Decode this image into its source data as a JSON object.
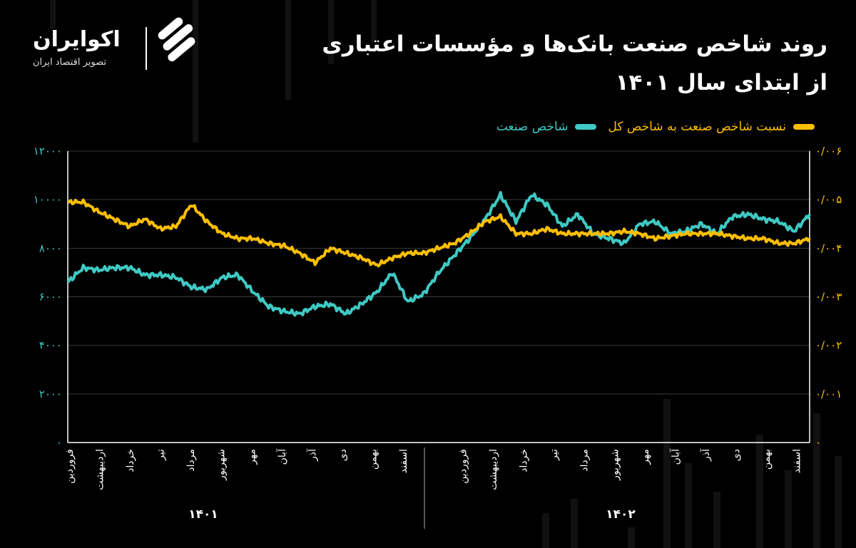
{
  "title_line1": "روند شاخص صنعت بانک‌ها و مؤسسات اعتباری",
  "title_line2": "از ابتدای سال ۱۴۰۱",
  "logo": {
    "name": "اکوایران",
    "subtitle": "تصویر اقتصاد ایران",
    "mark": "logo-mark-icon"
  },
  "colors": {
    "industry_index": "#3fc9c3",
    "ratio": "#ffbf00",
    "axis": "#ffffff",
    "grid": "#3a3a3a"
  },
  "chart_data": {
    "type": "line",
    "legend": [
      {
        "key": "ratio",
        "label": "نسبت شاخص صنعت به شاخص کل"
      },
      {
        "key": "industry_index",
        "label": "شاخص صنعت"
      }
    ],
    "legend_position": "top-right",
    "grid": "horizontal",
    "y_left": {
      "ticks": [
        "۱۲۰۰۰",
        "۱۰۰۰۰",
        "۸۰۰۰",
        "۶۰۰۰",
        "۴۰۰۰",
        "۲۰۰۰",
        "۰"
      ],
      "range": [
        0,
        12000
      ]
    },
    "y_right": {
      "ticks": [
        "۰/۰۰۶",
        "۰/۰۰۵",
        "۰/۰۰۴",
        "۰/۰۰۳",
        "۰/۰۰۲",
        "۰/۰۰۱",
        "۰"
      ],
      "range": [
        0,
        0.006
      ]
    },
    "months": [
      "فروردین",
      "اردیبهشت",
      "خرداد",
      "تیر",
      "مرداد",
      "شهریور",
      "مهر",
      "آبان",
      "آذر",
      "دی",
      "بهمن",
      "اسفند"
    ],
    "years": [
      "۱۴۰۱",
      "۱۴۰۲"
    ],
    "x_index_note": "x = month index from start of 1401 (0..24)",
    "series": [
      {
        "key": "industry_index",
        "axis": "left",
        "x": [
          0,
          0.5,
          1,
          1.5,
          2,
          2.5,
          3,
          3.5,
          4,
          4.5,
          5,
          5.5,
          6,
          6.5,
          7,
          7.5,
          8,
          8.5,
          9,
          9.5,
          10,
          10.5,
          11,
          11.5,
          12,
          12.5,
          13,
          13.5,
          14,
          14.5,
          15,
          15.5,
          16,
          16.5,
          17,
          17.5,
          18,
          18.5,
          19,
          19.5,
          20,
          20.5,
          21,
          21.5,
          22,
          22.5,
          23,
          23.5,
          24
        ],
        "values": [
          6600,
          7200,
          7100,
          7200,
          7200,
          6900,
          6900,
          6800,
          6400,
          6300,
          6800,
          6900,
          6200,
          5600,
          5400,
          5300,
          5600,
          5700,
          5300,
          5700,
          6200,
          7000,
          5800,
          6100,
          7000,
          7700,
          8400,
          9200,
          10200,
          9100,
          10200,
          9800,
          8900,
          9400,
          8600,
          8400,
          8200,
          9000,
          9100,
          8600,
          8700,
          9000,
          8600,
          9300,
          9400,
          9200,
          9100,
          8700,
          9400
        ]
      },
      {
        "key": "ratio",
        "axis": "right",
        "x": [
          0,
          0.5,
          1,
          1.5,
          2,
          2.5,
          3,
          3.5,
          4,
          4.5,
          5,
          5.5,
          6,
          6.5,
          7,
          7.5,
          8,
          8.5,
          9,
          9.5,
          10,
          10.5,
          11,
          11.5,
          12,
          12.5,
          13,
          13.5,
          14,
          14.5,
          15,
          15.5,
          16,
          16.5,
          17,
          17.5,
          18,
          18.5,
          19,
          19.5,
          20,
          20.5,
          21,
          21.5,
          22,
          22.5,
          23,
          23.5,
          24
        ],
        "values": [
          0.00495,
          0.00495,
          0.00475,
          0.0046,
          0.00445,
          0.0046,
          0.0044,
          0.00445,
          0.0049,
          0.00455,
          0.0043,
          0.0042,
          0.0042,
          0.0041,
          0.00405,
          0.0039,
          0.0037,
          0.004,
          0.0039,
          0.0038,
          0.00365,
          0.0038,
          0.0039,
          0.0039,
          0.004,
          0.0041,
          0.0043,
          0.00455,
          0.00465,
          0.0043,
          0.0043,
          0.0044,
          0.0043,
          0.0043,
          0.0043,
          0.0043,
          0.00435,
          0.0043,
          0.0042,
          0.00425,
          0.0043,
          0.0043,
          0.0043,
          0.00425,
          0.0042,
          0.0042,
          0.0041,
          0.0041,
          0.0042
        ]
      }
    ]
  }
}
